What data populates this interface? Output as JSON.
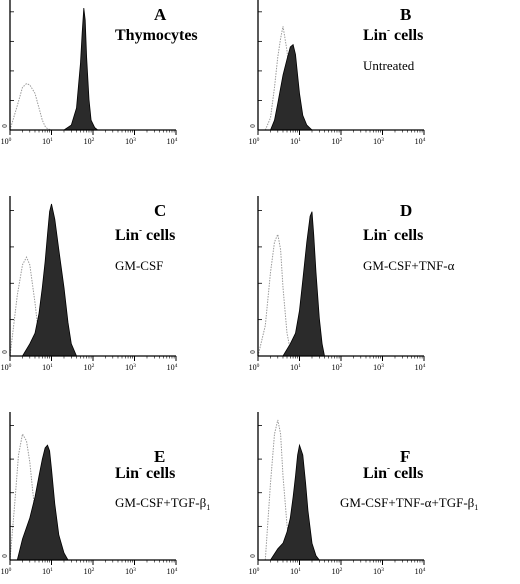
{
  "chart_data": [
    {
      "type": "area",
      "panel": "A",
      "title": "Thymocytes",
      "title_sup": "",
      "condition": "",
      "condition_sub": "",
      "condition_tail": "",
      "x_scale": "log",
      "xlim": [
        1,
        10000
      ],
      "x_ticks": [
        "10^0",
        "10^1",
        "10^2",
        "10^3",
        "10^4"
      ],
      "y_tick_label": "0",
      "series": [
        {
          "style": "dotted-outline",
          "x": [
            1,
            1.5,
            2,
            2.5,
            3,
            4,
            5,
            6,
            7,
            8,
            10
          ],
          "y": [
            0,
            0.2,
            0.35,
            0.38,
            0.37,
            0.3,
            0.18,
            0.08,
            0.03,
            0.01,
            0
          ]
        },
        {
          "style": "filled",
          "x": [
            20,
            30,
            40,
            50,
            55,
            60,
            65,
            70,
            80,
            90,
            110,
            130
          ],
          "y": [
            0,
            0.04,
            0.18,
            0.55,
            0.8,
            1.0,
            0.9,
            0.6,
            0.25,
            0.08,
            0.02,
            0
          ]
        }
      ]
    },
    {
      "type": "area",
      "panel": "B",
      "title": "Lin",
      "title_sup": "-",
      "title_tail": " cells",
      "condition": "Untreated",
      "condition_sub": "",
      "condition_tail": "",
      "x_scale": "log",
      "xlim": [
        1,
        10000
      ],
      "x_ticks": [
        "10^0",
        "10^1",
        "10^2",
        "10^3",
        "10^4"
      ],
      "y_tick_label": "0",
      "series": [
        {
          "style": "dotted-outline",
          "x": [
            1.5,
            2,
            2.5,
            3,
            3.5,
            4,
            5,
            6,
            7,
            9,
            12
          ],
          "y": [
            0,
            0.1,
            0.35,
            0.6,
            0.75,
            0.85,
            0.65,
            0.35,
            0.15,
            0.04,
            0
          ]
        },
        {
          "style": "filled",
          "x": [
            2,
            2.5,
            3,
            4,
            5,
            6,
            7,
            8,
            9,
            10,
            12,
            15,
            20
          ],
          "y": [
            0,
            0.08,
            0.22,
            0.45,
            0.58,
            0.68,
            0.7,
            0.62,
            0.45,
            0.3,
            0.12,
            0.04,
            0
          ]
        }
      ]
    },
    {
      "type": "area",
      "panel": "C",
      "title": "Lin",
      "title_sup": "-",
      "title_tail": " cells",
      "condition": "GM-CSF",
      "condition_sub": "",
      "condition_tail": "",
      "x_scale": "log",
      "xlim": [
        1,
        10000
      ],
      "x_ticks": [
        "10^0",
        "10^1",
        "10^2",
        "10^3",
        "10^4"
      ],
      "y_tick_label": "0",
      "series": [
        {
          "style": "dotted-outline",
          "x": [
            1,
            1.5,
            2,
            2.5,
            3,
            4,
            5,
            6,
            8
          ],
          "y": [
            0,
            0.4,
            0.6,
            0.65,
            0.6,
            0.35,
            0.12,
            0.04,
            0
          ]
        },
        {
          "style": "filled",
          "x": [
            2,
            3,
            4,
            5,
            6,
            7,
            8,
            9,
            10,
            12,
            15,
            20,
            25,
            30,
            40
          ],
          "y": [
            0,
            0.08,
            0.15,
            0.28,
            0.45,
            0.62,
            0.8,
            0.95,
            1.0,
            0.9,
            0.7,
            0.45,
            0.22,
            0.08,
            0
          ]
        }
      ]
    },
    {
      "type": "area",
      "panel": "D",
      "title": "Lin",
      "title_sup": "-",
      "title_tail": " cells",
      "condition": "GM-CSF+TNF-α",
      "condition_sub": "",
      "condition_tail": "",
      "x_scale": "log",
      "xlim": [
        1,
        10000
      ],
      "x_ticks": [
        "10^0",
        "10^1",
        "10^2",
        "10^3",
        "10^4"
      ],
      "y_tick_label": "0",
      "series": [
        {
          "style": "dotted-outline",
          "x": [
            1,
            1.5,
            2,
            2.5,
            3,
            3.5,
            4,
            5,
            6,
            8
          ],
          "y": [
            0,
            0.2,
            0.55,
            0.75,
            0.8,
            0.7,
            0.45,
            0.15,
            0.04,
            0
          ]
        },
        {
          "style": "filled",
          "x": [
            4,
            6,
            8,
            10,
            12,
            15,
            18,
            20,
            22,
            25,
            30,
            35,
            40
          ],
          "y": [
            0,
            0.08,
            0.15,
            0.3,
            0.5,
            0.75,
            0.92,
            0.95,
            0.8,
            0.55,
            0.25,
            0.08,
            0
          ]
        }
      ]
    },
    {
      "type": "area",
      "panel": "E",
      "title": "Lin",
      "title_sup": "-",
      "title_tail": " cells",
      "condition": "GM-CSF+TGF-β",
      "condition_sub": "1",
      "condition_tail": "",
      "x_scale": "log",
      "xlim": [
        1,
        10000
      ],
      "x_ticks": [
        "10^0",
        "10^1",
        "10^2",
        "10^3",
        "10^4"
      ],
      "y_tick_label": "0",
      "series": [
        {
          "style": "dotted-outline",
          "x": [
            1,
            1.3,
            1.6,
            2,
            2.5,
            3,
            3.5,
            4,
            5,
            6,
            8
          ],
          "y": [
            0,
            0.4,
            0.75,
            0.9,
            0.85,
            0.7,
            0.5,
            0.35,
            0.15,
            0.05,
            0
          ]
        },
        {
          "style": "filled",
          "x": [
            1.5,
            2,
            3,
            4,
            5,
            6,
            7,
            8,
            9,
            10,
            12,
            15,
            20,
            25
          ],
          "y": [
            0,
            0.15,
            0.3,
            0.45,
            0.6,
            0.72,
            0.8,
            0.82,
            0.78,
            0.65,
            0.4,
            0.18,
            0.05,
            0
          ]
        }
      ]
    },
    {
      "type": "area",
      "panel": "F",
      "title": "Lin",
      "title_sup": "-",
      "title_tail": " cells",
      "condition": "GM-CSF+TNF-α+TGF-β",
      "condition_sub": "1",
      "condition_tail": "",
      "x_scale": "log",
      "xlim": [
        1,
        10000
      ],
      "x_ticks": [
        "10^0",
        "10^1",
        "10^2",
        "10^3",
        "10^4"
      ],
      "y_tick_label": "0",
      "series": [
        {
          "style": "dotted-outline",
          "x": [
            1.5,
            2,
            2.5,
            3,
            3.5,
            4,
            5,
            6,
            7,
            9
          ],
          "y": [
            0,
            0.55,
            0.9,
            1.0,
            0.9,
            0.6,
            0.25,
            0.08,
            0.02,
            0
          ]
        },
        {
          "style": "filled",
          "x": [
            2,
            3,
            4,
            5,
            6,
            7,
            8,
            9,
            10,
            12,
            14,
            16,
            20,
            25,
            30
          ],
          "y": [
            0,
            0.08,
            0.12,
            0.2,
            0.3,
            0.45,
            0.6,
            0.75,
            0.82,
            0.75,
            0.55,
            0.35,
            0.12,
            0.03,
            0
          ]
        }
      ]
    }
  ]
}
